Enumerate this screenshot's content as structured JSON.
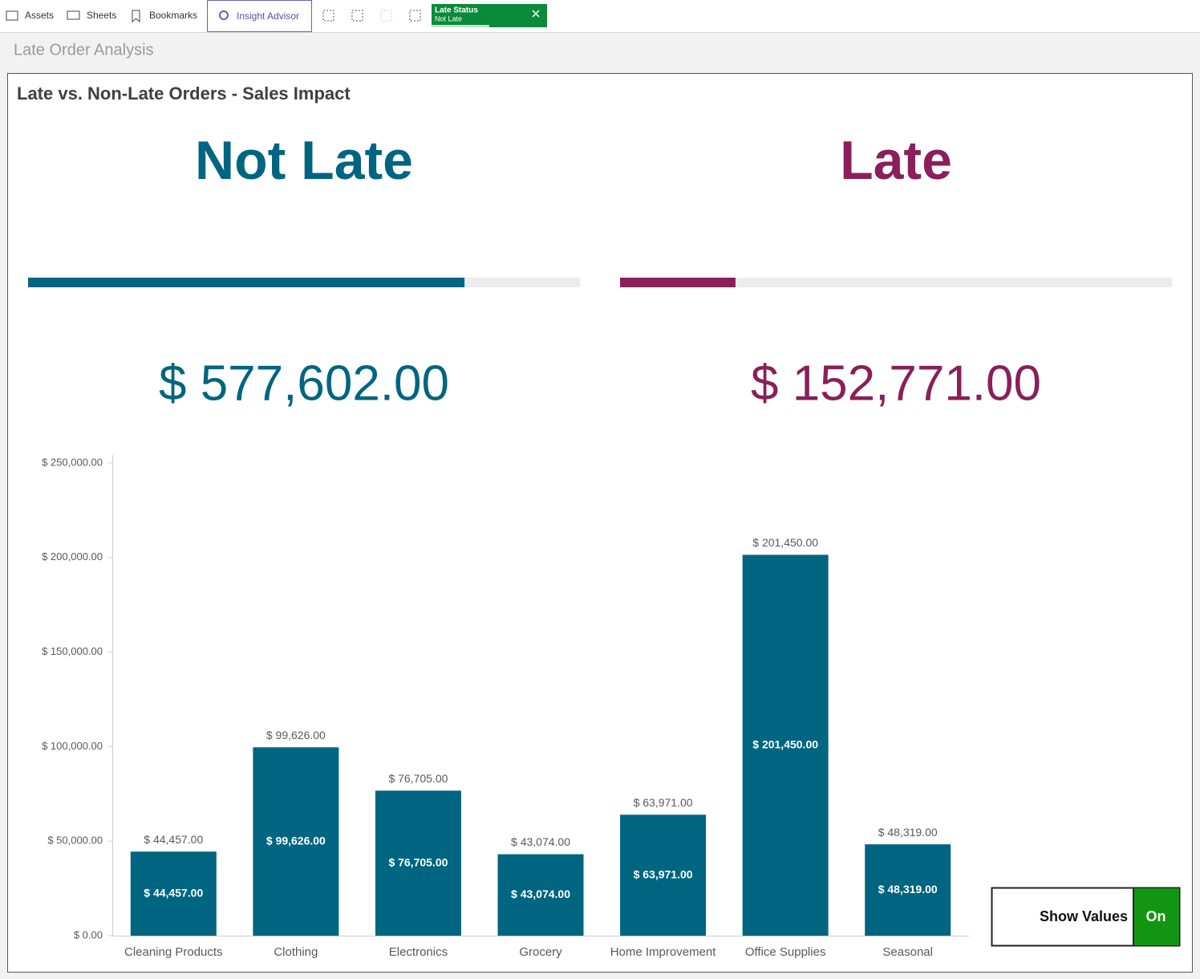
{
  "toolbar": {
    "items": [
      "Assets",
      "Sheets",
      "Bookmarks",
      "Insight Advisor"
    ],
    "filter": {
      "field": "Late Status",
      "value": "Not Late"
    }
  },
  "sheet_title": "Late Order Analysis",
  "panel_title": "Late vs. Non-Late Orders - Sales Impact",
  "kpis": [
    {
      "label": "Not Late",
      "value": 577602,
      "value_label": "$ 577,602.00",
      "color": "#006580"
    },
    {
      "label": "Late",
      "value": 152771,
      "value_label": "$ 152,771.00",
      "color": "#8a1f5a"
    }
  ],
  "chart_data": {
    "type": "bar",
    "categories": [
      "Cleaning Products",
      "Clothing",
      "Electronics",
      "Grocery",
      "Home Improvement",
      "Office Supplies",
      "Seasonal"
    ],
    "values": [
      44457,
      99626,
      76705,
      43074,
      63971,
      201450,
      48319
    ],
    "value_labels": [
      "$ 44,457.00",
      "$ 99,626.00",
      "$ 76,705.00",
      "$ 43,074.00",
      "$ 63,971.00",
      "$ 201,450.00",
      "$ 48,319.00"
    ],
    "color": "#006580",
    "ylim": [
      0,
      250000
    ],
    "yticks": [
      {
        "value": 0,
        "label": "$ 0.00"
      },
      {
        "value": 50000,
        "label": "$ 50,000.00"
      },
      {
        "value": 100000,
        "label": "$ 100,000.00"
      },
      {
        "value": 150000,
        "label": "$ 150,000.00"
      },
      {
        "value": 200000,
        "label": "$ 200,000.00"
      },
      {
        "value": 250000,
        "label": "$ 250,000.00"
      }
    ]
  },
  "toggle": {
    "label": "Show Values",
    "state": "On"
  }
}
